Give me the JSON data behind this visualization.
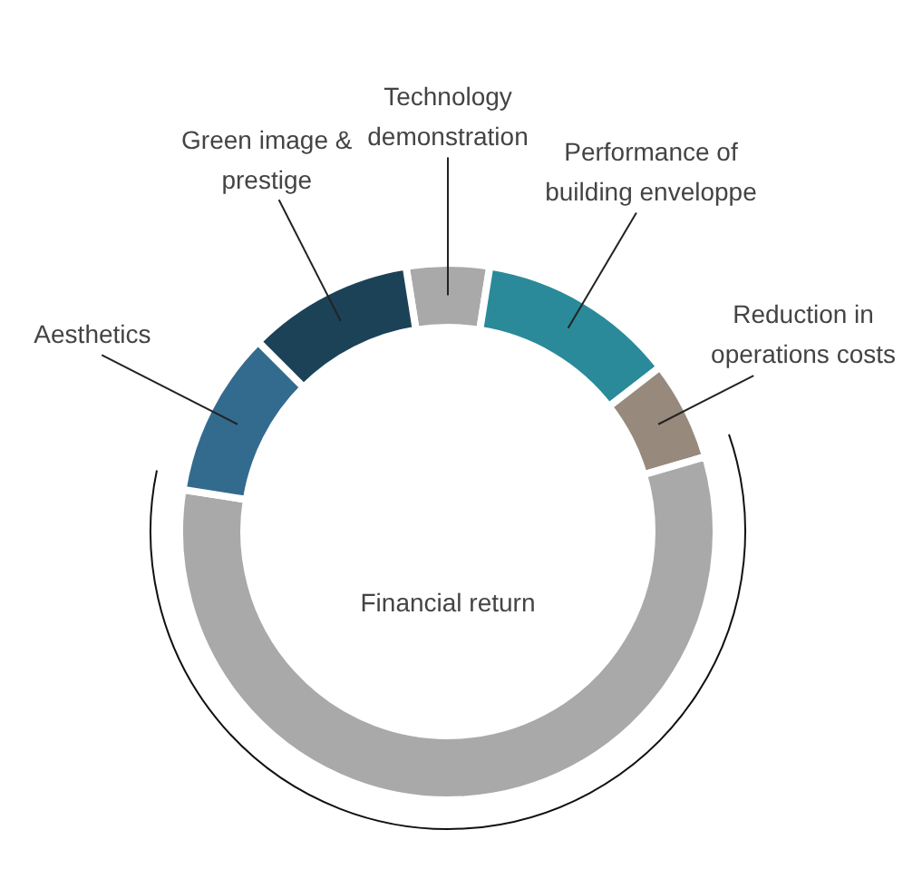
{
  "chart_data": {
    "type": "donut",
    "categories": [
      "Technology demonstration",
      "Performance of building enveloppe",
      "Reduction in operations costs",
      "Financial return",
      "Aesthetics",
      "Green image & prestige"
    ],
    "values": [
      5,
      12,
      6,
      57,
      10,
      10
    ],
    "colors": [
      "#a9a9a9",
      "#2a8a99",
      "#978a7c",
      "#a9a9a9",
      "#336b8f",
      "#1c4258"
    ],
    "legend": false
  }
}
